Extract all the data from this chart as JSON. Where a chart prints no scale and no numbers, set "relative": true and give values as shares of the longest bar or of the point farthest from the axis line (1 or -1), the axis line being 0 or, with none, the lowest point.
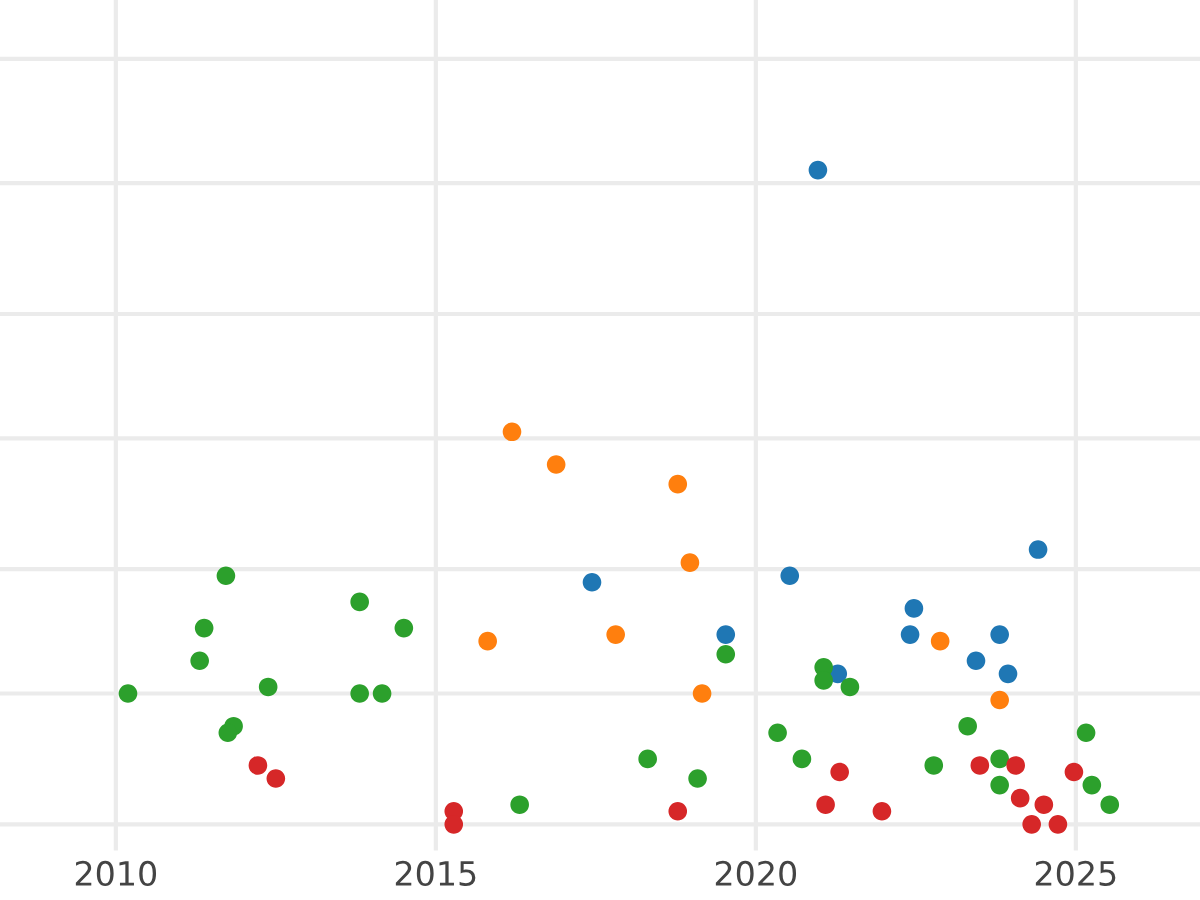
{
  "chart_data": {
    "type": "scatter",
    "relative": true,
    "grid": true,
    "legend": false,
    "marker": "circle",
    "xlim": [
      2008.19,
      2026.94
    ],
    "xticks": [
      2010,
      2015,
      2020,
      2025
    ],
    "tick_labels": "x",
    "series": [
      {
        "color": "#1f77b4",
        "x": [
          2020.97,
          2017.44,
          2020.53,
          2024.41,
          2019.53,
          2022.47,
          2022.41,
          2023.81,
          2023.44,
          2023.94,
          2021.28
        ],
        "values": [
          1.0,
          0.37,
          0.38,
          0.42,
          0.29,
          0.33,
          0.29,
          0.29,
          0.25,
          0.23,
          0.23
        ]
      },
      {
        "color": "#ff7f0e",
        "x": [
          2016.19,
          2016.88,
          2018.78,
          2018.97,
          2015.81,
          2017.81,
          2019.16,
          2022.88,
          2023.81
        ],
        "values": [
          0.6,
          0.55,
          0.52,
          0.4,
          0.28,
          0.29,
          0.2,
          0.28,
          0.19
        ]
      },
      {
        "color": "#2ca02c",
        "x": [
          2010.19,
          2011.72,
          2011.38,
          2011.31,
          2012.38,
          2011.84,
          2011.75,
          2013.81,
          2014.5,
          2013.81,
          2014.16,
          2016.31,
          2018.31,
          2019.09,
          2019.53,
          2020.34,
          2020.72,
          2021.06,
          2021.06,
          2021.47,
          2023.31,
          2022.78,
          2023.81,
          2023.81,
          2025.16,
          2025.25,
          2025.53
        ],
        "values": [
          0.2,
          0.38,
          0.3,
          0.25,
          0.21,
          0.15,
          0.14,
          0.34,
          0.3,
          0.2,
          0.2,
          0.03,
          0.1,
          0.07,
          0.26,
          0.14,
          0.1,
          0.24,
          0.22,
          0.21,
          0.15,
          0.09,
          0.1,
          0.06,
          0.14,
          0.06,
          0.03
        ]
      },
      {
        "color": "#d62728",
        "x": [
          2012.22,
          2012.5,
          2015.28,
          2015.28,
          2018.78,
          2021.31,
          2021.09,
          2021.97,
          2023.5,
          2024.06,
          2024.13,
          2024.31,
          2024.5,
          2024.72,
          2024.97
        ],
        "values": [
          0.09,
          0.07,
          0.02,
          0.0,
          0.02,
          0.08,
          0.03,
          0.02,
          0.09,
          0.09,
          0.04,
          0.0,
          0.03,
          0.0,
          0.08
        ]
      }
    ]
  }
}
